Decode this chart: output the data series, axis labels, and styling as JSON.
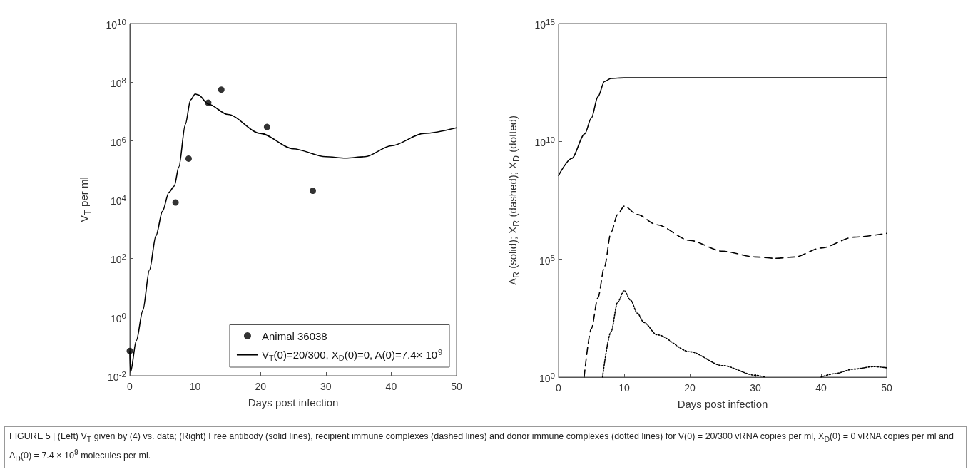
{
  "chart_data": [
    {
      "type": "line",
      "xlabel": "Days post infection",
      "ylabel": "V$_{T}$ per ml",
      "log": "y",
      "legend": "bottom right",
      "xlim": [
        0,
        50
      ],
      "xticks": [
        0,
        10,
        20,
        30,
        40,
        50
      ],
      "ylim": [
        0.01,
        10000000000
      ],
      "yticks": [
        {
          "value": 0.01,
          "label": "10$^{-2}$"
        },
        {
          "value": 1,
          "label": "10$^{0}$"
        },
        {
          "value": 100,
          "label": "10$^{2}$"
        },
        {
          "value": 10000,
          "label": "10$^{4}$"
        },
        {
          "value": 1000000,
          "label": "10$^{6}$"
        },
        {
          "value": 100000000,
          "label": "10$^{8}$"
        },
        {
          "value": 10000000000,
          "label": "10$^{10}$"
        }
      ],
      "series": [
        {
          "type": "scatter",
          "name": "Animal 36038",
          "color": "#000000",
          "marker": "circle",
          "x": [
            0,
            7,
            9,
            12,
            14,
            21,
            28
          ],
          "values": [
            0.07,
            8000,
            250000,
            20000000,
            56000000,
            3000000,
            20000
          ]
        },
        {
          "name": "V$_{T}$(0)=20/300, X$_{D}$(0)=0, A(0)=7.4× 10$^{9}$",
          "color": "#000000",
          "line_style": "solid",
          "x": [
            0,
            0.1,
            1,
            2,
            3,
            4,
            5,
            6,
            6.8,
            7.5,
            8.5,
            9.3,
            10,
            10.5,
            12,
            15,
            20,
            25,
            30,
            33,
            36,
            40,
            45,
            50
          ],
          "values": [
            0.067,
            0.013,
            0.16,
            1.7,
            40,
            590,
            4000,
            18000,
            29000,
            130000,
            3700000,
            25000000,
            40000000,
            37000000,
            18000000,
            8000000,
            1800000,
            540000,
            290000,
            260000,
            290000,
            680000,
            1800000,
            2800000
          ]
        }
      ],
      "annotations": [
        "FIGURE 5 | (Left) V$_{T}$ given by (4) vs. data; (Right) Free antibody (solid lines), recipient immune complexes (dashed lines) and donor immune complexes (dotted lines) for V(0) = 20/300 vRNA copies per ml, X$_{D}$(0) = 0 vRNA copies per ml and A$_{D}$(0) = 7.4 × 10$^{9}$ molecules per ml."
      ]
    },
    {
      "type": "line",
      "xlabel": "Days post infection",
      "ylabel": "A$_{R}$ (solid); X$_{R}$ (dashed); X$_{D}$ (dotted)",
      "log": "y",
      "xlim": [
        0,
        50
      ],
      "xticks": [
        0,
        10,
        20,
        30,
        40,
        50
      ],
      "ylim": [
        1,
        1000000000000000
      ],
      "yticks": [
        {
          "value": 1,
          "label": "10$^{0}$"
        },
        {
          "value": 100000,
          "label": "10$^{5}$"
        },
        {
          "value": 10000000000,
          "label": "10$^{10}$"
        },
        {
          "value": 1000000000000000,
          "label": "10$^{15}$"
        }
      ],
      "series": [
        {
          "color": "#000000",
          "line_style": "solid",
          "x": [
            0,
            2,
            4,
            5,
            6,
            7,
            8,
            10,
            20,
            30,
            40,
            50
          ],
          "values": [
            360000000,
            1900000000,
            21000000000,
            98000000000,
            790000000000,
            3500000000000,
            4700000000000,
            5000000000000,
            5000000000000,
            5000000000000,
            5000000000000,
            5000000000000
          ]
        },
        {
          "color": "#000000",
          "line_style": "dashed",
          "x": [
            3.9,
            5,
            6,
            7,
            8,
            9,
            10,
            12,
            15,
            20,
            25,
            30,
            33,
            36,
            40,
            45,
            50
          ],
          "values": [
            1,
            115,
            2300,
            49000,
            1400000,
            7900000,
            18000000,
            7900000,
            2900000,
            630000,
            220000,
            126000,
            110000,
            126000,
            300000,
            870000,
            1260000
          ]
        },
        {
          "color": "#000000",
          "line_style": "dotted",
          "x": [
            6.7,
            8,
            9,
            10,
            11,
            12,
            13,
            15,
            20,
            25,
            30,
            31.5,
            35,
            40,
            42,
            45,
            48,
            50
          ],
          "values": [
            1,
            85,
            1500,
            4700,
            1800,
            520,
            210,
            63,
            12,
            3.1,
            1.2,
            1,
            null,
            1,
            1.4,
            2.2,
            2.8,
            2.5
          ]
        }
      ]
    }
  ]
}
